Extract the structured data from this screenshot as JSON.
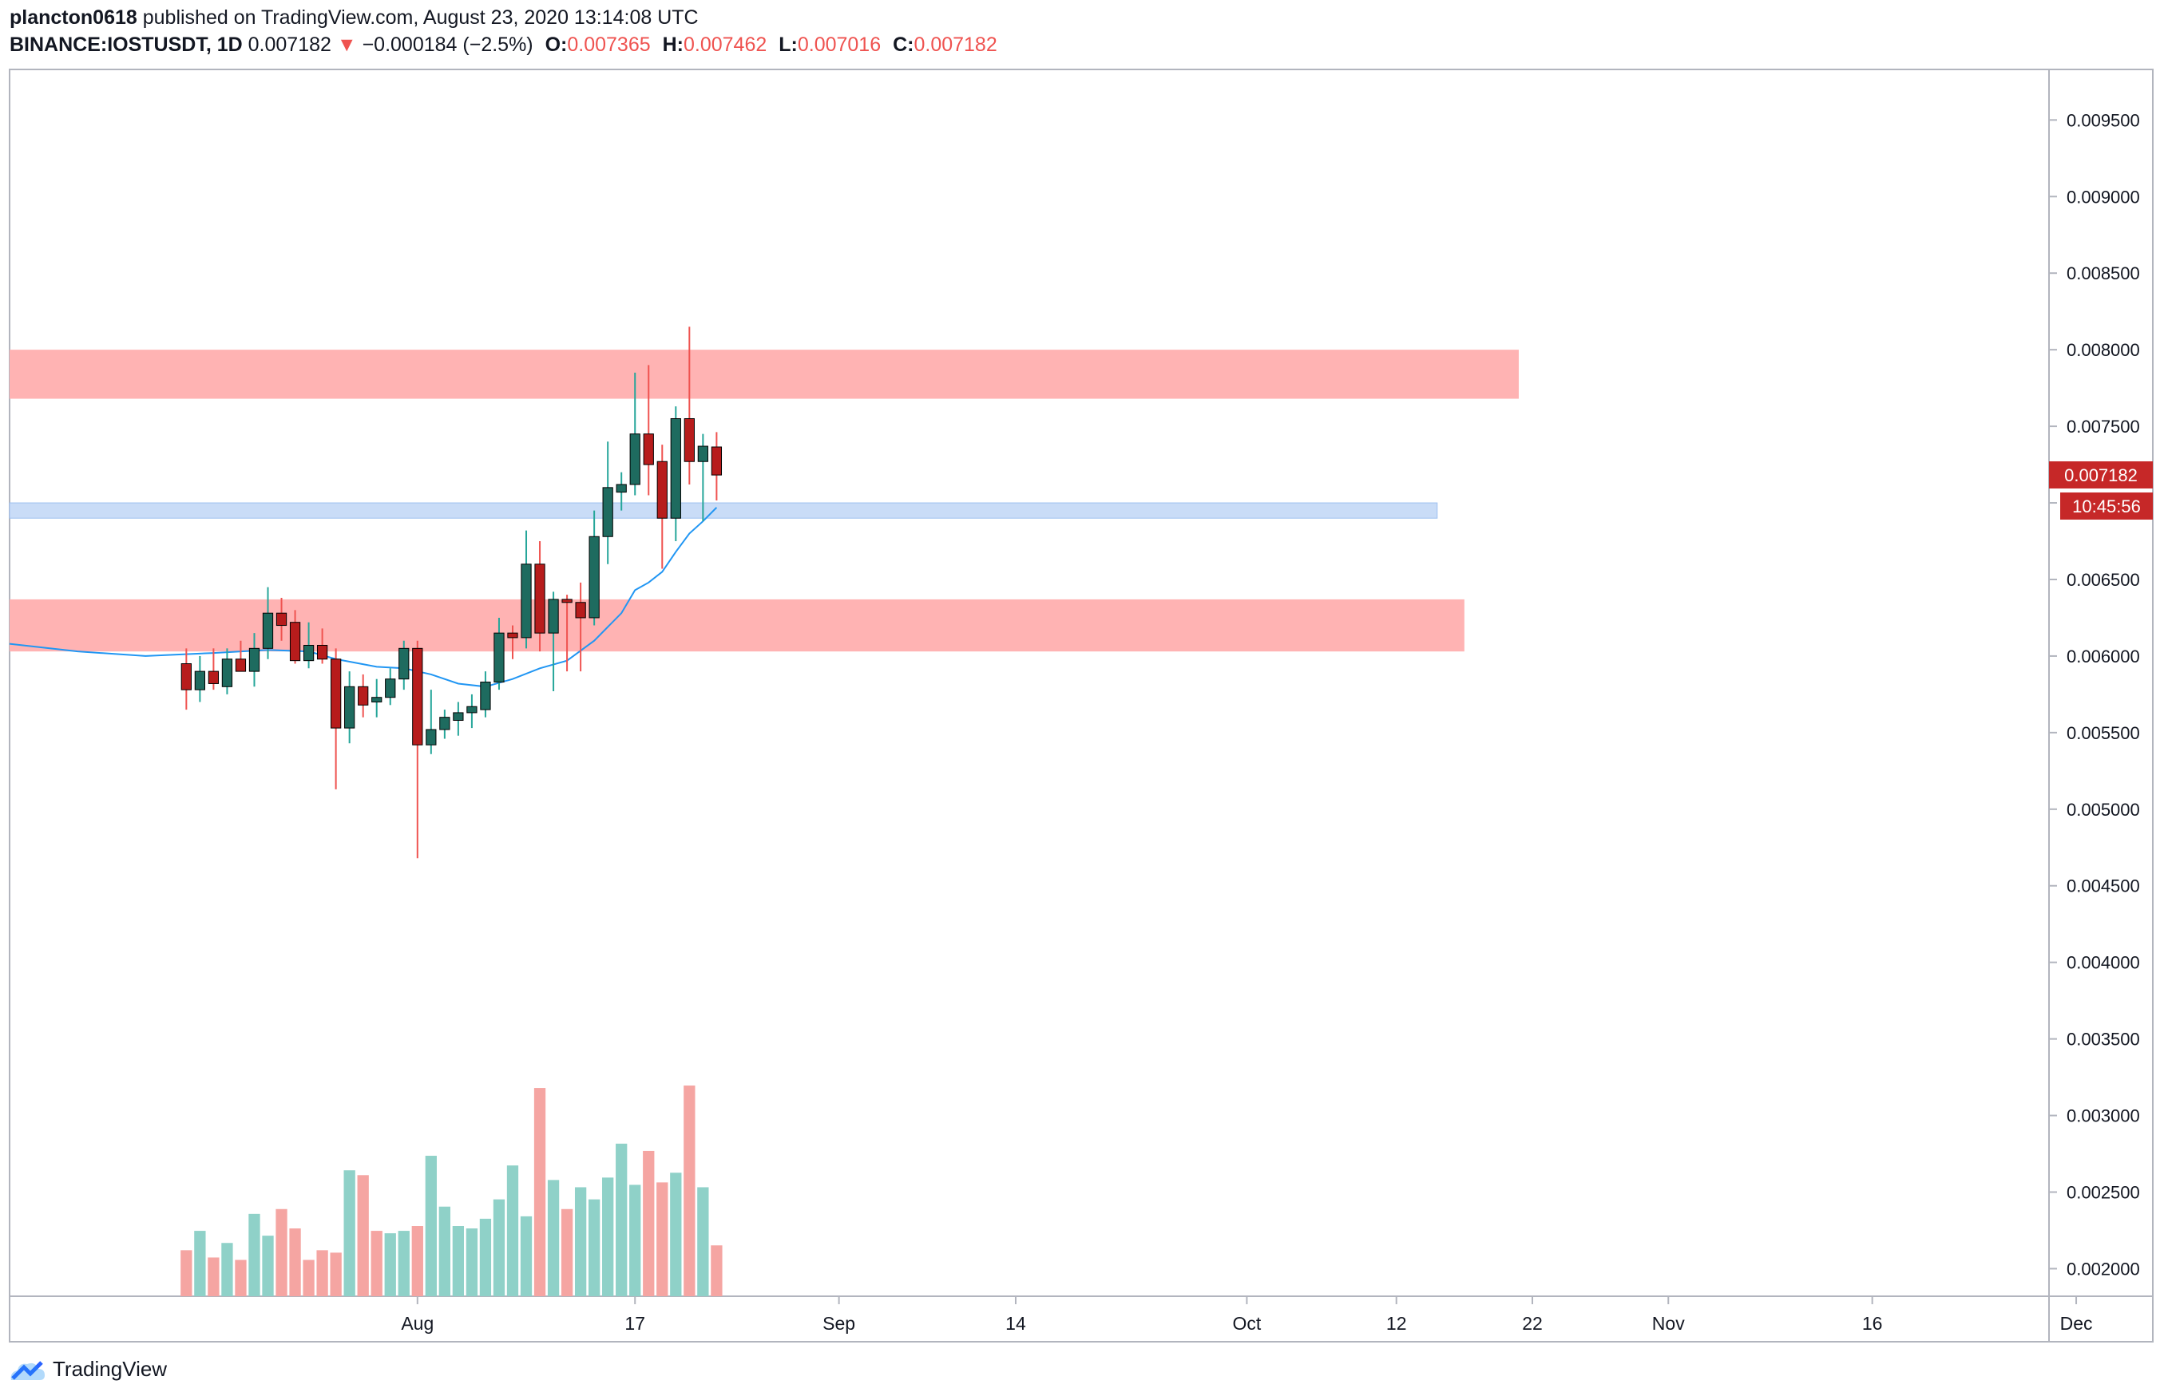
{
  "header": {
    "author": "plancton0618",
    "published": "published on TradingView.com, August 23, 2020 13:14:08 UTC",
    "symbol": "BINANCE:IOSTUSDT, 1D",
    "last": "0.007182",
    "change": "−0.000184 (−2.5%)",
    "open_label": "O:",
    "open": "0.007365",
    "high_label": "H:",
    "high": "0.007462",
    "low_label": "L:",
    "low": "0.007016",
    "close_label": "C:",
    "close": "0.007182"
  },
  "footer": {
    "brand": "TradingView"
  },
  "colors": {
    "up": "#26a69a",
    "up_body": "#1e6b5f",
    "down": "#ef5350",
    "down_body": "#b71c1c",
    "vol_up": "#8fd1c8",
    "vol_down": "#f5a5a2",
    "zone_red": "#ffb3b3",
    "zone_blue": "#c9dcf7",
    "ma": "#2196f3"
  },
  "chart_data": {
    "type": "candlestick",
    "price_axis": {
      "ylim": [
        0.00182,
        0.00983
      ],
      "ticks": [
        "0.009500",
        "0.009000",
        "0.008500",
        "0.008000",
        "0.007500",
        "0.007000",
        "0.006500",
        "0.006000",
        "0.005500",
        "0.005000",
        "0.004500",
        "0.004000",
        "0.003500",
        "0.003000",
        "0.002500",
        "0.002000"
      ],
      "tick_values": [
        0.0095,
        0.009,
        0.0085,
        0.008,
        0.0075,
        0.007,
        0.0065,
        0.006,
        0.0055,
        0.005,
        0.0045,
        0.004,
        0.0035,
        0.003,
        0.0025,
        0.002
      ]
    },
    "time_axis": {
      "first_day_index": -29,
      "last_day_index": 121,
      "ticks": [
        {
          "label": "Aug",
          "day": 1
        },
        {
          "label": "17",
          "day": 17
        },
        {
          "label": "Sep",
          "day": 32
        },
        {
          "label": "14",
          "day": 45
        },
        {
          "label": "Oct",
          "day": 62
        },
        {
          "label": "12",
          "day": 73
        },
        {
          "label": "22",
          "day": 83
        },
        {
          "label": "Nov",
          "day": 93
        },
        {
          "label": "16",
          "day": 108
        },
        {
          "label": "Dec",
          "day": 123
        }
      ]
    },
    "candles": [
      {
        "day": -16,
        "o": 0.00595,
        "h": 0.00605,
        "l": 0.00565,
        "c": 0.00578
      },
      {
        "day": -15,
        "o": 0.00578,
        "h": 0.006,
        "l": 0.0057,
        "c": 0.0059
      },
      {
        "day": -14,
        "o": 0.0059,
        "h": 0.00605,
        "l": 0.00578,
        "c": 0.00582
      },
      {
        "day": -13,
        "o": 0.0058,
        "h": 0.00605,
        "l": 0.00575,
        "c": 0.00598
      },
      {
        "day": -12,
        "o": 0.00598,
        "h": 0.0061,
        "l": 0.0059,
        "c": 0.0059
      },
      {
        "day": -11,
        "o": 0.0059,
        "h": 0.00615,
        "l": 0.0058,
        "c": 0.00605
      },
      {
        "day": -10,
        "o": 0.00605,
        "h": 0.00645,
        "l": 0.00598,
        "c": 0.00628
      },
      {
        "day": -9,
        "o": 0.00628,
        "h": 0.00638,
        "l": 0.0061,
        "c": 0.0062
      },
      {
        "day": -8,
        "o": 0.00622,
        "h": 0.0063,
        "l": 0.00595,
        "c": 0.00597
      },
      {
        "day": -7,
        "o": 0.00597,
        "h": 0.00622,
        "l": 0.00592,
        "c": 0.00607
      },
      {
        "day": -6,
        "o": 0.00607,
        "h": 0.00618,
        "l": 0.00595,
        "c": 0.00598
      },
      {
        "day": -5,
        "o": 0.00598,
        "h": 0.00605,
        "l": 0.00513,
        "c": 0.00553
      },
      {
        "day": -4,
        "o": 0.00553,
        "h": 0.0059,
        "l": 0.00543,
        "c": 0.0058
      },
      {
        "day": -3,
        "o": 0.0058,
        "h": 0.00588,
        "l": 0.0056,
        "c": 0.00568
      },
      {
        "day": -2,
        "o": 0.0057,
        "h": 0.00585,
        "l": 0.0056,
        "c": 0.00573
      },
      {
        "day": -1,
        "o": 0.00573,
        "h": 0.00592,
        "l": 0.00568,
        "c": 0.00585
      },
      {
        "day": 0,
        "o": 0.00585,
        "h": 0.0061,
        "l": 0.00578,
        "c": 0.00605
      },
      {
        "day": 1,
        "o": 0.00605,
        "h": 0.0061,
        "l": 0.00468,
        "c": 0.00542
      },
      {
        "day": 2,
        "o": 0.00542,
        "h": 0.00578,
        "l": 0.00536,
        "c": 0.00552
      },
      {
        "day": 3,
        "o": 0.00552,
        "h": 0.00565,
        "l": 0.00546,
        "c": 0.0056
      },
      {
        "day": 4,
        "o": 0.00558,
        "h": 0.0057,
        "l": 0.00548,
        "c": 0.00563
      },
      {
        "day": 5,
        "o": 0.00563,
        "h": 0.00575,
        "l": 0.00553,
        "c": 0.00567
      },
      {
        "day": 6,
        "o": 0.00565,
        "h": 0.0059,
        "l": 0.0056,
        "c": 0.00583
      },
      {
        "day": 7,
        "o": 0.00583,
        "h": 0.00625,
        "l": 0.00578,
        "c": 0.00615
      },
      {
        "day": 8,
        "o": 0.00615,
        "h": 0.0062,
        "l": 0.00598,
        "c": 0.00612
      },
      {
        "day": 9,
        "o": 0.00612,
        "h": 0.00682,
        "l": 0.00605,
        "c": 0.0066
      },
      {
        "day": 10,
        "o": 0.0066,
        "h": 0.00675,
        "l": 0.00603,
        "c": 0.00615
      },
      {
        "day": 11,
        "o": 0.00615,
        "h": 0.00642,
        "l": 0.00577,
        "c": 0.00637
      },
      {
        "day": 12,
        "o": 0.00637,
        "h": 0.0064,
        "l": 0.0059,
        "c": 0.00635
      },
      {
        "day": 13,
        "o": 0.00635,
        "h": 0.00648,
        "l": 0.0059,
        "c": 0.00625
      },
      {
        "day": 14,
        "o": 0.00625,
        "h": 0.00695,
        "l": 0.0062,
        "c": 0.00678
      },
      {
        "day": 15,
        "o": 0.00678,
        "h": 0.0074,
        "l": 0.0066,
        "c": 0.0071
      },
      {
        "day": 16,
        "o": 0.00707,
        "h": 0.0072,
        "l": 0.00695,
        "c": 0.00712
      },
      {
        "day": 17,
        "o": 0.00712,
        "h": 0.00785,
        "l": 0.00705,
        "c": 0.00745
      },
      {
        "day": 18,
        "o": 0.00745,
        "h": 0.0079,
        "l": 0.00705,
        "c": 0.00725
      },
      {
        "day": 19,
        "o": 0.00727,
        "h": 0.00738,
        "l": 0.00657,
        "c": 0.0069
      },
      {
        "day": 20,
        "o": 0.0069,
        "h": 0.00763,
        "l": 0.00675,
        "c": 0.00755
      },
      {
        "day": 21,
        "o": 0.00755,
        "h": 0.00815,
        "l": 0.00712,
        "c": 0.00727
      },
      {
        "day": 22,
        "o": 0.00727,
        "h": 0.00745,
        "l": 0.00688,
        "c": 0.00737
      },
      {
        "day": 23,
        "o": 0.007365,
        "h": 0.007462,
        "l": 0.007016,
        "c": 0.007182
      }
    ],
    "volume_up_days": [
      -15,
      -13,
      -11,
      -10,
      -4,
      -1,
      0,
      2,
      3,
      4,
      5,
      6,
      7,
      8,
      9,
      11,
      13,
      14,
      15,
      16,
      17,
      20,
      22
    ],
    "volume_ylim": [
      0,
      1.0
    ],
    "volume": [
      0.19,
      0.27,
      0.16,
      0.22,
      0.15,
      0.34,
      0.25,
      0.36,
      0.28,
      0.15,
      0.19,
      0.18,
      0.52,
      0.5,
      0.27,
      0.26,
      0.27,
      0.29,
      0.58,
      0.37,
      0.29,
      0.28,
      0.32,
      0.4,
      0.54,
      0.33,
      0.86,
      0.48,
      0.36,
      0.45,
      0.4,
      0.49,
      0.63,
      0.46,
      0.6,
      0.47,
      0.51,
      0.87,
      0.45,
      0.21
    ],
    "moving_average": [
      [
        -29,
        0.00608
      ],
      [
        -24,
        0.00603
      ],
      [
        -19,
        0.006
      ],
      [
        -14,
        0.00602
      ],
      [
        -10,
        0.00604
      ],
      [
        -7,
        0.00603
      ],
      [
        -5,
        0.00598
      ],
      [
        -2,
        0.00593
      ],
      [
        0,
        0.00592
      ],
      [
        2,
        0.00588
      ],
      [
        4,
        0.00582
      ],
      [
        6,
        0.0058
      ],
      [
        8,
        0.00585
      ],
      [
        10,
        0.00592
      ],
      [
        12,
        0.00597
      ],
      [
        14,
        0.0061
      ],
      [
        16,
        0.00628
      ],
      [
        17,
        0.00643
      ],
      [
        18,
        0.00648
      ],
      [
        19,
        0.00655
      ],
      [
        20,
        0.00668
      ],
      [
        21,
        0.0068
      ],
      [
        22,
        0.00688
      ],
      [
        23,
        0.00697
      ]
    ],
    "zones": [
      {
        "kind": "resistance",
        "y_low": 0.00768,
        "y_high": 0.008,
        "day_start": -29,
        "day_end": 82
      },
      {
        "kind": "support",
        "y_low": 0.0069,
        "y_high": 0.007,
        "day_start": -29,
        "day_end": 76
      },
      {
        "kind": "demand",
        "y_low": 0.00603,
        "y_high": 0.00637,
        "day_start": -29,
        "day_end": 78
      }
    ],
    "price_label": "0.007182",
    "countdown_label": "10:45:56"
  }
}
